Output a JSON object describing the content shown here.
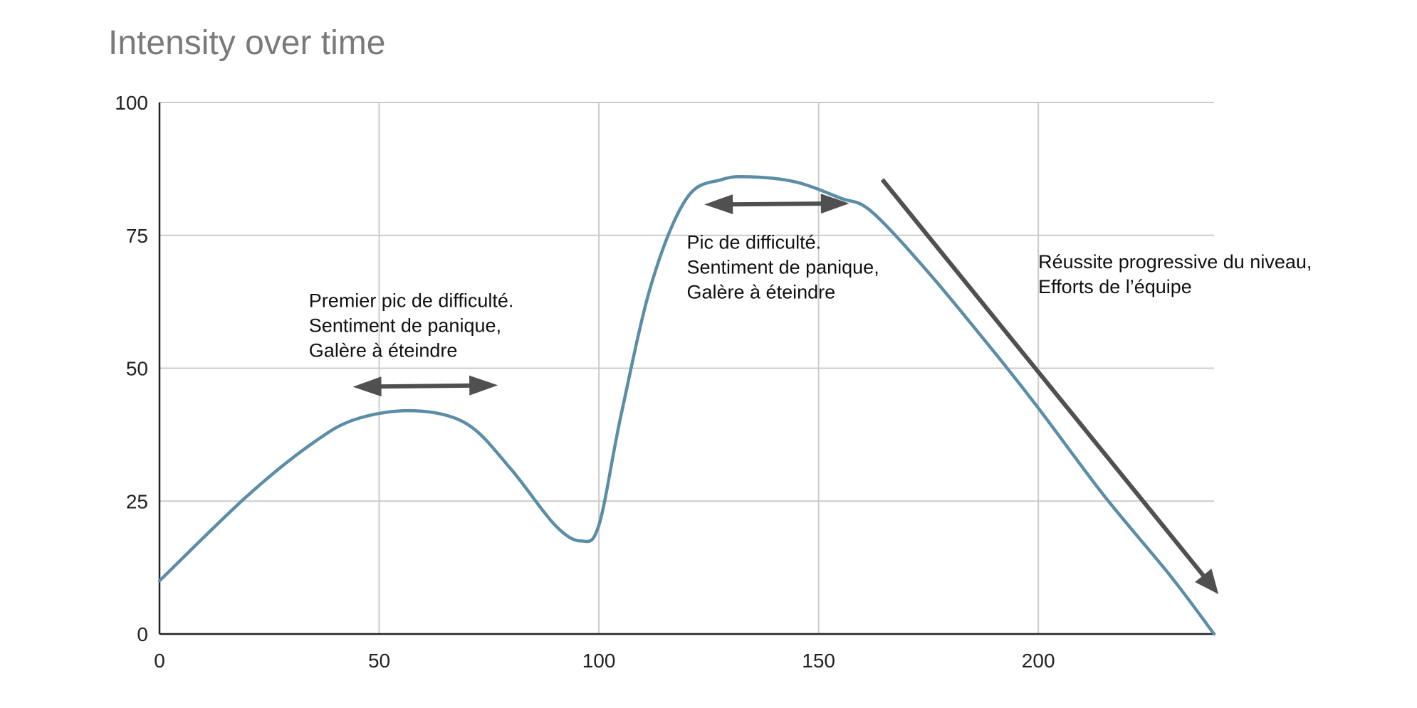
{
  "chart_data": {
    "type": "line",
    "title": "Intensity over time",
    "xlabel": "",
    "ylabel": "",
    "xlim": [
      0,
      240
    ],
    "ylim": [
      0,
      100
    ],
    "xticks": [
      0,
      50,
      100,
      150,
      200
    ],
    "yticks": [
      0,
      25,
      50,
      75,
      100
    ],
    "grid": true,
    "legend": "none",
    "series": [
      {
        "color": "#5b8ea6",
        "x": [
          0,
          20,
          35,
          45,
          58,
          70,
          80,
          90,
          96,
          100,
          105,
          112,
          120,
          128,
          135,
          145,
          155,
          162,
          175,
          190,
          200,
          215,
          230,
          240
        ],
        "y": [
          10,
          26,
          36,
          40.5,
          42,
          39.5,
          31,
          20.5,
          17.5,
          20.5,
          41,
          66,
          82,
          85.5,
          86,
          85,
          82,
          79.5,
          68,
          53,
          42.5,
          26,
          11,
          0
        ]
      }
    ],
    "annotations": [
      {
        "lines": [
          "Premier pic de difficulté.",
          "Sentiment de panique,",
          "Galère à éteindre"
        ],
        "x": 34,
        "y": 61.5,
        "arrow": {
          "type": "double",
          "x1": 44,
          "y1": 46.5,
          "x2": 77,
          "y2": 46.8
        }
      },
      {
        "lines": [
          "Pic de difficulté.",
          "Sentiment de panique,",
          "Galère à éteindre"
        ],
        "x": 120,
        "y": 72.5,
        "arrow": {
          "type": "double",
          "x1": 124,
          "y1": 80.8,
          "x2": 157,
          "y2": 81
        }
      },
      {
        "lines": [
          "Réussite progressive du niveau,",
          "Efforts de l’équipe"
        ],
        "x": 200,
        "y": 68.8,
        "arrow": {
          "type": "single",
          "x1": 164.5,
          "y1": 85.5,
          "x2": 241,
          "y2": 7.5
        }
      }
    ],
    "colors": {
      "line": "#5b8ea6",
      "grid": "#cccccc",
      "axis": "#222222",
      "arrow": "#505050",
      "title": "#7a7a7a"
    }
  }
}
